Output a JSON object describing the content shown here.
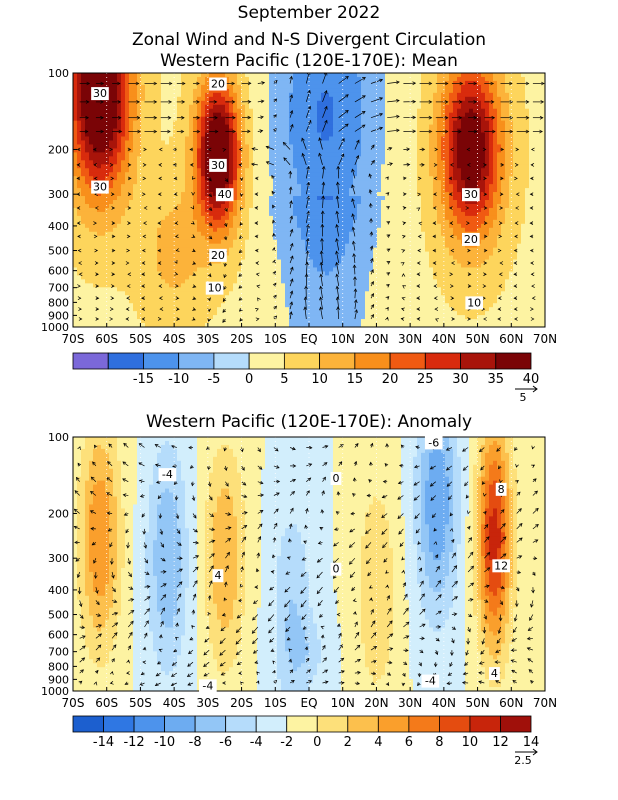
{
  "header": {
    "title": "September 2022"
  },
  "colors": {
    "neg": [
      "#7b68d9",
      "#2f6fde",
      "#4d93ec",
      "#7fb6f4",
      "#b5dcfb"
    ],
    "pos": [
      "#fdf3a2",
      "#fdd55c",
      "#fcb33a",
      "#f88f1b",
      "#f05a12",
      "#d82b0d",
      "#a8140a",
      "#7a0406"
    ],
    "anom_neg": [
      "#1c5fcf",
      "#2f77e3",
      "#4d93ec",
      "#6dacf1",
      "#93c6f6",
      "#b5dcfb",
      "#d2eefc"
    ],
    "anom_pos": [
      "#fdf3a2",
      "#fde07a",
      "#fcc04d",
      "#fa9f2c",
      "#f47a1a",
      "#e44c10",
      "#c8250b",
      "#a0100a"
    ]
  },
  "chart_data": [
    {
      "type": "heatmap",
      "title": "Zonal Wind and N-S Divergent Circulation",
      "subtitle": "Western Pacific (120E-170E): Mean",
      "xlabel": "",
      "ylabel": "",
      "x_ticks": [
        "70S",
        "60S",
        "50S",
        "40S",
        "30S",
        "20S",
        "10S",
        "EQ",
        "10N",
        "20N",
        "30N",
        "40N",
        "50N",
        "60N",
        "70N"
      ],
      "y_ticks": [
        "100",
        "200",
        "300",
        "400",
        "500",
        "600",
        "700",
        "800",
        "900",
        "1000"
      ],
      "y_scale": "log",
      "ylim": [
        1000,
        100
      ],
      "xlim": [
        -70,
        70
      ],
      "contour_labels": [
        "30",
        "30",
        "20",
        "30",
        "40",
        "20",
        "10",
        "30",
        "20",
        "10"
      ],
      "colorbar_ticks": [
        "-15",
        "-10",
        "-5",
        "0",
        "5",
        "10",
        "15",
        "20",
        "25",
        "30",
        "35",
        "40"
      ],
      "vector_ref": "5",
      "jets": [
        {
          "lat": -62,
          "p": 120,
          "u": 45
        },
        {
          "lat": -27,
          "p": 210,
          "u": 44
        },
        {
          "lat": 48,
          "p": 200,
          "u": 38
        },
        {
          "lat": 5,
          "p": 150,
          "u": -12
        }
      ]
    },
    {
      "type": "heatmap",
      "title": "Western Pacific (120E-170E): Anomaly",
      "xlabel": "",
      "ylabel": "",
      "x_ticks": [
        "70S",
        "60S",
        "50S",
        "40S",
        "30S",
        "20S",
        "10S",
        "EQ",
        "10N",
        "20N",
        "30N",
        "40N",
        "50N",
        "60N",
        "70N"
      ],
      "y_ticks": [
        "100",
        "200",
        "300",
        "400",
        "500",
        "600",
        "700",
        "800",
        "900",
        "1000"
      ],
      "y_scale": "log",
      "ylim": [
        1000,
        100
      ],
      "xlim": [
        -70,
        70
      ],
      "contour_labels": [
        "-4",
        "0",
        "-6",
        "8",
        "4",
        "0",
        "12",
        "-4",
        "4",
        "-4"
      ],
      "colorbar_ticks": [
        "-14",
        "-12",
        "-10",
        "-8",
        "-6",
        "-4",
        "-2",
        "0",
        "2",
        "4",
        "6",
        "8",
        "10",
        "12",
        "14"
      ],
      "vector_ref": "2.5",
      "anomalies": [
        {
          "lat": -62,
          "p": 250,
          "u": 8
        },
        {
          "lat": -42,
          "p": 300,
          "u": -6
        },
        {
          "lat": -25,
          "p": 300,
          "u": 6
        },
        {
          "lat": -5,
          "p": 500,
          "u": -4
        },
        {
          "lat": 20,
          "p": 400,
          "u": 4
        },
        {
          "lat": 38,
          "p": 180,
          "u": -8
        },
        {
          "lat": 55,
          "p": 250,
          "u": 13
        }
      ]
    }
  ]
}
